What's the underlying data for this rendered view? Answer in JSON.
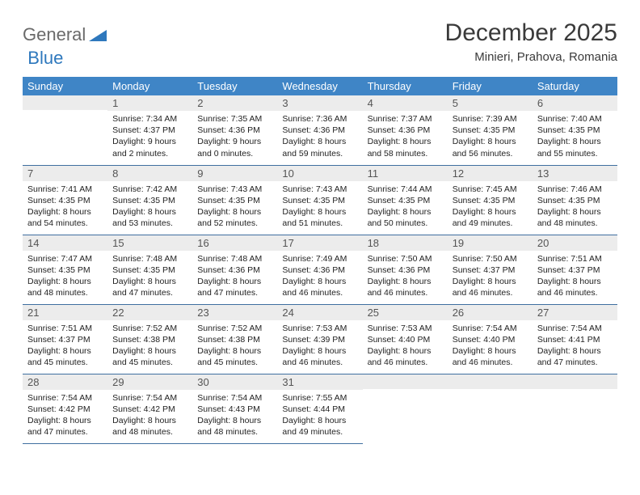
{
  "logo": {
    "text1": "General",
    "text2": "Blue"
  },
  "title": "December 2025",
  "location": "Minieri, Prahova, Romania",
  "colors": {
    "header_bg": "#3f85c6",
    "header_text": "#ffffff",
    "daynum_bg": "#ececec",
    "row_border": "#3f6fa0",
    "logo_blue": "#2e78bd",
    "logo_gray": "#6a6a6a"
  },
  "weekdays": [
    "Sunday",
    "Monday",
    "Tuesday",
    "Wednesday",
    "Thursday",
    "Friday",
    "Saturday"
  ],
  "weeks": [
    [
      {
        "n": "",
        "sr": "",
        "ss": "",
        "dl": ""
      },
      {
        "n": "1",
        "sr": "Sunrise: 7:34 AM",
        "ss": "Sunset: 4:37 PM",
        "dl": "Daylight: 9 hours and 2 minutes."
      },
      {
        "n": "2",
        "sr": "Sunrise: 7:35 AM",
        "ss": "Sunset: 4:36 PM",
        "dl": "Daylight: 9 hours and 0 minutes."
      },
      {
        "n": "3",
        "sr": "Sunrise: 7:36 AM",
        "ss": "Sunset: 4:36 PM",
        "dl": "Daylight: 8 hours and 59 minutes."
      },
      {
        "n": "4",
        "sr": "Sunrise: 7:37 AM",
        "ss": "Sunset: 4:36 PM",
        "dl": "Daylight: 8 hours and 58 minutes."
      },
      {
        "n": "5",
        "sr": "Sunrise: 7:39 AM",
        "ss": "Sunset: 4:35 PM",
        "dl": "Daylight: 8 hours and 56 minutes."
      },
      {
        "n": "6",
        "sr": "Sunrise: 7:40 AM",
        "ss": "Sunset: 4:35 PM",
        "dl": "Daylight: 8 hours and 55 minutes."
      }
    ],
    [
      {
        "n": "7",
        "sr": "Sunrise: 7:41 AM",
        "ss": "Sunset: 4:35 PM",
        "dl": "Daylight: 8 hours and 54 minutes."
      },
      {
        "n": "8",
        "sr": "Sunrise: 7:42 AM",
        "ss": "Sunset: 4:35 PM",
        "dl": "Daylight: 8 hours and 53 minutes."
      },
      {
        "n": "9",
        "sr": "Sunrise: 7:43 AM",
        "ss": "Sunset: 4:35 PM",
        "dl": "Daylight: 8 hours and 52 minutes."
      },
      {
        "n": "10",
        "sr": "Sunrise: 7:43 AM",
        "ss": "Sunset: 4:35 PM",
        "dl": "Daylight: 8 hours and 51 minutes."
      },
      {
        "n": "11",
        "sr": "Sunrise: 7:44 AM",
        "ss": "Sunset: 4:35 PM",
        "dl": "Daylight: 8 hours and 50 minutes."
      },
      {
        "n": "12",
        "sr": "Sunrise: 7:45 AM",
        "ss": "Sunset: 4:35 PM",
        "dl": "Daylight: 8 hours and 49 minutes."
      },
      {
        "n": "13",
        "sr": "Sunrise: 7:46 AM",
        "ss": "Sunset: 4:35 PM",
        "dl": "Daylight: 8 hours and 48 minutes."
      }
    ],
    [
      {
        "n": "14",
        "sr": "Sunrise: 7:47 AM",
        "ss": "Sunset: 4:35 PM",
        "dl": "Daylight: 8 hours and 48 minutes."
      },
      {
        "n": "15",
        "sr": "Sunrise: 7:48 AM",
        "ss": "Sunset: 4:35 PM",
        "dl": "Daylight: 8 hours and 47 minutes."
      },
      {
        "n": "16",
        "sr": "Sunrise: 7:48 AM",
        "ss": "Sunset: 4:36 PM",
        "dl": "Daylight: 8 hours and 47 minutes."
      },
      {
        "n": "17",
        "sr": "Sunrise: 7:49 AM",
        "ss": "Sunset: 4:36 PM",
        "dl": "Daylight: 8 hours and 46 minutes."
      },
      {
        "n": "18",
        "sr": "Sunrise: 7:50 AM",
        "ss": "Sunset: 4:36 PM",
        "dl": "Daylight: 8 hours and 46 minutes."
      },
      {
        "n": "19",
        "sr": "Sunrise: 7:50 AM",
        "ss": "Sunset: 4:37 PM",
        "dl": "Daylight: 8 hours and 46 minutes."
      },
      {
        "n": "20",
        "sr": "Sunrise: 7:51 AM",
        "ss": "Sunset: 4:37 PM",
        "dl": "Daylight: 8 hours and 46 minutes."
      }
    ],
    [
      {
        "n": "21",
        "sr": "Sunrise: 7:51 AM",
        "ss": "Sunset: 4:37 PM",
        "dl": "Daylight: 8 hours and 45 minutes."
      },
      {
        "n": "22",
        "sr": "Sunrise: 7:52 AM",
        "ss": "Sunset: 4:38 PM",
        "dl": "Daylight: 8 hours and 45 minutes."
      },
      {
        "n": "23",
        "sr": "Sunrise: 7:52 AM",
        "ss": "Sunset: 4:38 PM",
        "dl": "Daylight: 8 hours and 45 minutes."
      },
      {
        "n": "24",
        "sr": "Sunrise: 7:53 AM",
        "ss": "Sunset: 4:39 PM",
        "dl": "Daylight: 8 hours and 46 minutes."
      },
      {
        "n": "25",
        "sr": "Sunrise: 7:53 AM",
        "ss": "Sunset: 4:40 PM",
        "dl": "Daylight: 8 hours and 46 minutes."
      },
      {
        "n": "26",
        "sr": "Sunrise: 7:54 AM",
        "ss": "Sunset: 4:40 PM",
        "dl": "Daylight: 8 hours and 46 minutes."
      },
      {
        "n": "27",
        "sr": "Sunrise: 7:54 AM",
        "ss": "Sunset: 4:41 PM",
        "dl": "Daylight: 8 hours and 47 minutes."
      }
    ],
    [
      {
        "n": "28",
        "sr": "Sunrise: 7:54 AM",
        "ss": "Sunset: 4:42 PM",
        "dl": "Daylight: 8 hours and 47 minutes."
      },
      {
        "n": "29",
        "sr": "Sunrise: 7:54 AM",
        "ss": "Sunset: 4:42 PM",
        "dl": "Daylight: 8 hours and 48 minutes."
      },
      {
        "n": "30",
        "sr": "Sunrise: 7:54 AM",
        "ss": "Sunset: 4:43 PM",
        "dl": "Daylight: 8 hours and 48 minutes."
      },
      {
        "n": "31",
        "sr": "Sunrise: 7:55 AM",
        "ss": "Sunset: 4:44 PM",
        "dl": "Daylight: 8 hours and 49 minutes."
      },
      {
        "n": "",
        "sr": "",
        "ss": "",
        "dl": ""
      },
      {
        "n": "",
        "sr": "",
        "ss": "",
        "dl": ""
      },
      {
        "n": "",
        "sr": "",
        "ss": "",
        "dl": ""
      }
    ]
  ]
}
